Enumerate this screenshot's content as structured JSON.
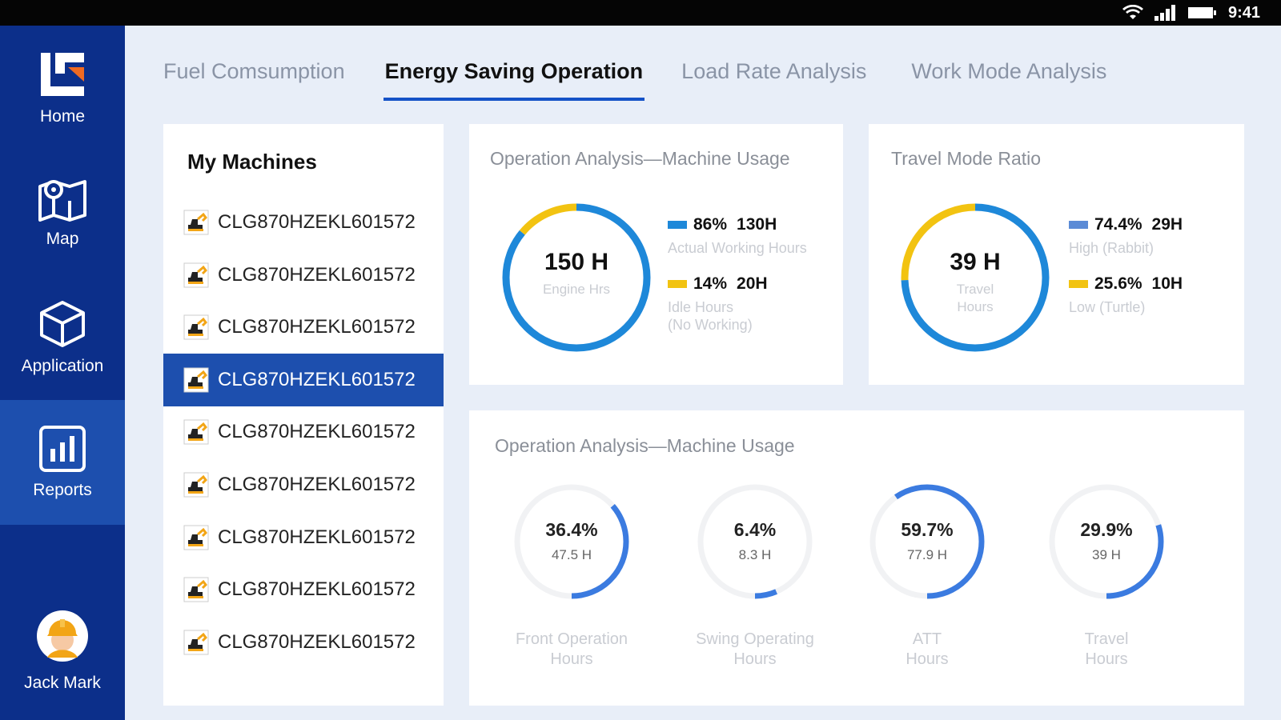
{
  "status_bar": {
    "time": "9:41"
  },
  "sidebar": {
    "items": [
      {
        "label": "Home",
        "icon": "logo-icon"
      },
      {
        "label": "Map",
        "icon": "map-icon"
      },
      {
        "label": "Application",
        "icon": "cube-icon"
      },
      {
        "label": "Reports",
        "icon": "bar-chart-icon",
        "active": true
      }
    ],
    "user": {
      "name": "Jack Mark",
      "icon": "worker-avatar"
    }
  },
  "tabs": [
    {
      "label": "Fuel Comsumption"
    },
    {
      "label": "Energy Saving Operation",
      "active": true
    },
    {
      "label": "Load Rate Analysis"
    },
    {
      "label": "Work Mode Analysis"
    }
  ],
  "machines": {
    "title": "My Machines",
    "items": [
      "CLG870HZEKL601572",
      "CLG870HZEKL601572",
      "CLG870HZEKL601572",
      "CLG870HZEKL601572",
      "CLG870HZEKL601572",
      "CLG870HZEKL601572",
      "CLG870HZEKL601572",
      "CLG870HZEKL601572",
      "CLG870HZEKL601572"
    ],
    "selected_index": 3
  },
  "machine_usage": {
    "title": "Operation Analysis—Machine Usage",
    "total": "150 H",
    "total_label": "Engine Hrs",
    "entries": [
      {
        "pct": "86%",
        "hours": "130H",
        "label": "Actual Working Hours",
        "color": "#1e88d9",
        "fraction": 0.86
      },
      {
        "pct": "14%",
        "hours": "20H",
        "label": "Idle Hours",
        "label2": "(No Working)",
        "color": "#f2c311",
        "fraction": 0.14
      }
    ]
  },
  "travel_mode": {
    "title": "Travel Mode Ratio",
    "total": "39 H",
    "total_label": "Travel",
    "total_label2": "Hours",
    "entries": [
      {
        "pct": "74.4%",
        "hours": "29H",
        "label": "High (Rabbit)",
        "color": "#5b8bd6",
        "fraction": 0.744
      },
      {
        "pct": "25.6%",
        "hours": "10H",
        "label": "Low (Turtle)",
        "color": "#f2c311",
        "fraction": 0.256
      }
    ]
  },
  "operation_breakdown": {
    "title": "Operation Analysis—Machine Usage",
    "items": [
      {
        "pct": "36.4%",
        "hours": "47.5 H",
        "label1": "Front Operation",
        "label2": "Hours",
        "fraction": 0.364
      },
      {
        "pct": "6.4%",
        "hours": "8.3 H",
        "label1": "Swing Operating",
        "label2": "Hours",
        "fraction": 0.064
      },
      {
        "pct": "59.7%",
        "hours": "77.9 H",
        "label1": "ATT",
        "label2": "Hours",
        "fraction": 0.597
      },
      {
        "pct": "29.9%",
        "hours": "39 H",
        "label1": "Travel",
        "label2": "Hours",
        "fraction": 0.299
      }
    ],
    "ring_color": "#3b7be0",
    "track_color": "#f1f2f4"
  }
}
